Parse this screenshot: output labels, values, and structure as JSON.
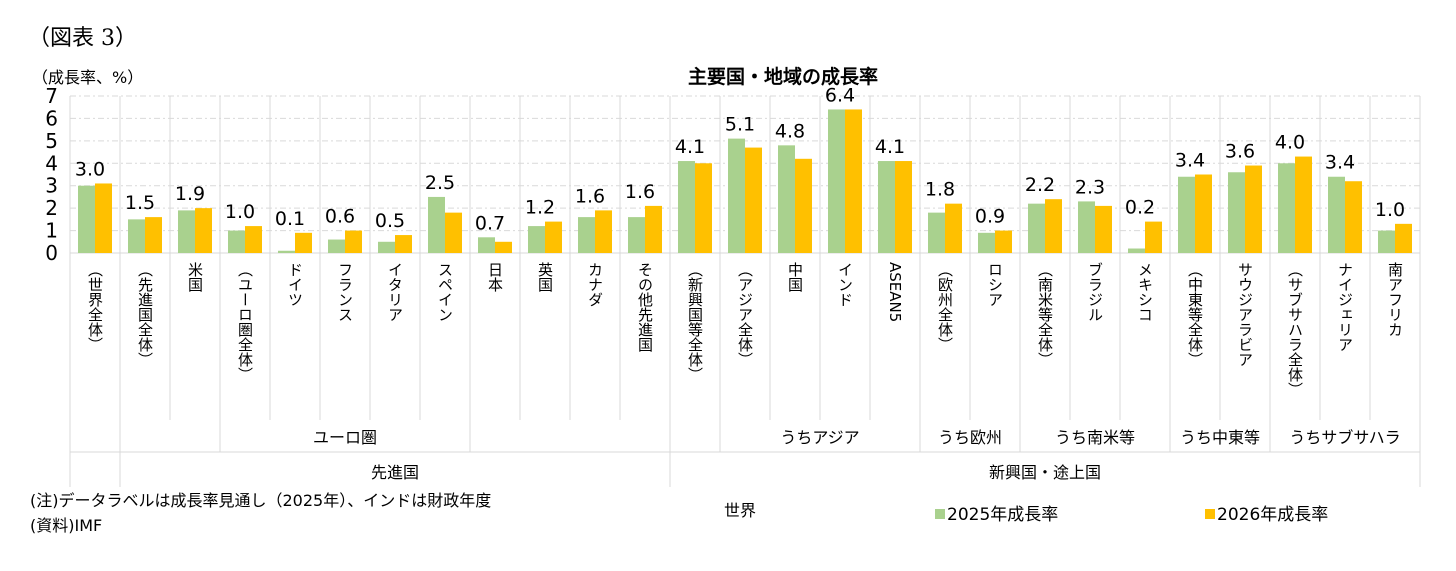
{
  "figure_label": "（図表 3）",
  "notes": [
    "(注)データラベルは成長率見通し（2025年）、インドは財政年度",
    "(資料)IMF"
  ],
  "chart_data": {
    "type": "bar",
    "title": "主要国・地域の成長率",
    "ylabel": "（成長率、%）",
    "ylim": [
      0,
      7
    ],
    "yticks": [
      0,
      1,
      2,
      3,
      4,
      5,
      6,
      7
    ],
    "grid": true,
    "legend_placement": "bottom-right",
    "categories": [
      "（世界全体）",
      "（先進国全体）",
      "米国",
      "（ユーロ圏全体）",
      "ドイツ",
      "フランス",
      "イタリア",
      "スペイン",
      "日本",
      "英国",
      "カナダ",
      "その他先進国",
      "（新興国等全体）",
      "（アジア全体）",
      "中国",
      "インド",
      "ASEAN5",
      "（欧州全体）",
      "ロシア",
      "（南米等全体）",
      "ブラジル",
      "メキシコ",
      "（中東等全体）",
      "サウジアラビア",
      "（サブサハラ全体）",
      "ナイジェリア",
      "南アフリカ"
    ],
    "groups_level2": [
      {
        "label": "ユーロ圏",
        "from": 3,
        "to": 7
      },
      {
        "label": "うちアジア",
        "from": 13,
        "to": 16
      },
      {
        "label": "うち欧州",
        "from": 17,
        "to": 18
      },
      {
        "label": "うち南米等",
        "from": 19,
        "to": 21
      },
      {
        "label": "うち中東等",
        "from": 22,
        "to": 23
      },
      {
        "label": "うちサブサハラ",
        "from": 24,
        "to": 26
      }
    ],
    "groups_level3": [
      {
        "label": "世界",
        "from": 0,
        "to": 0
      },
      {
        "label": "先進国",
        "from": 1,
        "to": 11
      },
      {
        "label": "新興国・途上国",
        "from": 12,
        "to": 26
      }
    ],
    "series": [
      {
        "name": "2025年成長率",
        "color": "#a9d18e",
        "values": [
          3.0,
          1.5,
          1.9,
          1.0,
          0.1,
          0.6,
          0.5,
          2.5,
          0.7,
          1.2,
          1.6,
          1.6,
          4.1,
          5.1,
          4.8,
          6.4,
          4.1,
          1.8,
          0.9,
          2.2,
          2.3,
          0.2,
          3.4,
          3.6,
          4.0,
          3.4,
          1.0
        ]
      },
      {
        "name": "2026年成長率",
        "color": "#ffc000",
        "values": [
          3.1,
          1.6,
          2.0,
          1.2,
          0.9,
          1.0,
          0.8,
          1.8,
          0.5,
          1.4,
          1.9,
          2.1,
          4.0,
          4.7,
          4.2,
          6.4,
          4.1,
          2.2,
          1.0,
          2.4,
          2.1,
          1.4,
          3.5,
          3.9,
          4.3,
          3.2,
          1.3
        ]
      }
    ],
    "data_labels_series": "2025年成長率"
  }
}
